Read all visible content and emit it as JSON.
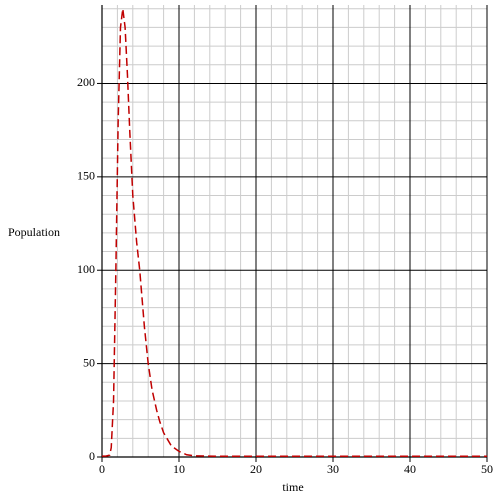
{
  "chart_data": {
    "type": "line",
    "xlabel": "time",
    "ylabel": "Population",
    "x": [
      0,
      0.5,
      1,
      1.2,
      1.5,
      1.8,
      2.1,
      2.4,
      2.7,
      3.0,
      3.3,
      3.6,
      4.0,
      4.5,
      4.9,
      5.5,
      6.0,
      6.5,
      7.1,
      7.5,
      8,
      9,
      10,
      11,
      12,
      15,
      20,
      30,
      40,
      50
    ],
    "series": [
      {
        "color": "#c00000",
        "values": [
          0.5,
          0.5,
          1,
          5,
          30,
          100,
          180,
          230,
          240,
          230,
          205,
          175,
          140,
          115,
          100,
          70,
          50,
          36,
          25,
          19,
          13,
          6,
          3,
          1.2,
          0.6,
          0.4,
          0.4,
          0.4,
          0.4,
          0.4
        ]
      }
    ],
    "xlim": [
      0,
      50
    ],
    "ylim": [
      0,
      242
    ],
    "xticks": [
      0,
      10,
      20,
      30,
      40,
      50
    ],
    "yticks": [
      0,
      50,
      100,
      150,
      200
    ],
    "grid": true
  }
}
